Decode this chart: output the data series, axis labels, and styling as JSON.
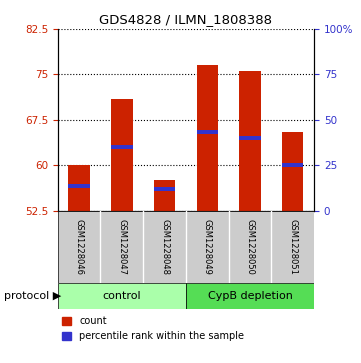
{
  "title": "GDS4828 / ILMN_1808388",
  "samples": [
    "GSM1228046",
    "GSM1228047",
    "GSM1228048",
    "GSM1228049",
    "GSM1228050",
    "GSM1228051"
  ],
  "bar_bottom": 52.5,
  "bar_tops": [
    60.0,
    71.0,
    57.5,
    76.5,
    75.5,
    65.5
  ],
  "blue_marker_values": [
    56.5,
    63.0,
    56.0,
    65.5,
    64.5,
    60.0
  ],
  "ylim": [
    52.5,
    82.5
  ],
  "yticks_left": [
    52.5,
    60.0,
    67.5,
    75.0,
    82.5
  ],
  "yticks_right_labels": [
    "0",
    "25",
    "50",
    "75",
    "100%"
  ],
  "bar_color": "#cc2200",
  "blue_color": "#3333cc",
  "control_color": "#aaffaa",
  "depletion_color": "#55dd55",
  "sample_bg_color": "#cccccc",
  "left_tick_color": "#cc2200",
  "right_tick_color": "#3333cc",
  "bar_width": 0.5,
  "group_labels": [
    "control",
    "CypB depletion"
  ],
  "protocol_label": "protocol",
  "legend_count": "count",
  "legend_percentile": "percentile rank within the sample"
}
